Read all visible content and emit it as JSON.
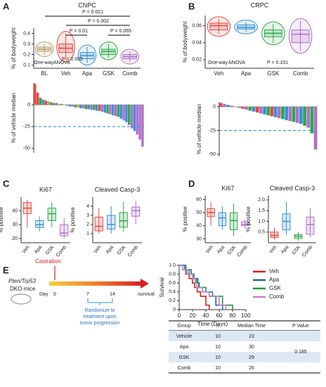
{
  "panel_labels": [
    "A",
    "B",
    "C",
    "D",
    "E"
  ],
  "chart_data": [
    {
      "type": "box",
      "title": "CNPC",
      "y_label": "% of bodyweight",
      "categories": [
        "BL",
        "Veh",
        "Apa",
        "GSK",
        "Comb"
      ],
      "colors": [
        "#b5a06a",
        "#e8463c",
        "#3a8fd6",
        "#2ea84a",
        "#b070c8"
      ],
      "min": [
        0.2,
        0.15,
        0.12,
        0.17,
        0.13
      ],
      "q1": [
        0.23,
        0.22,
        0.16,
        0.2,
        0.16
      ],
      "median": [
        0.25,
        0.26,
        0.19,
        0.23,
        0.18
      ],
      "q3": [
        0.27,
        0.3,
        0.22,
        0.25,
        0.2
      ],
      "max": [
        0.3,
        0.4,
        0.27,
        0.3,
        0.23
      ],
      "ylim": [
        0.07,
        0.45
      ],
      "yticks": [
        0.1,
        0.2,
        0.3,
        0.4
      ],
      "annotations": [
        "P = 0.021",
        "P = 0.002",
        "P = 0.01",
        "P = 0.065",
        "P = 0.002",
        "One-way",
        "ANOVA"
      ]
    },
    {
      "type": "waterfall",
      "y_label": "% of vehicle median",
      "values": [
        24,
        14,
        8,
        6,
        5,
        4,
        3,
        2,
        2,
        1,
        1,
        0,
        -1,
        -2,
        -2,
        -3,
        -3,
        -4,
        -4,
        -5,
        -5,
        -6,
        -6,
        -7,
        -7,
        -8,
        -9,
        -10,
        -11,
        -12,
        -13,
        -14,
        -16,
        -18,
        -20,
        -23,
        -27,
        -30,
        -34,
        -40,
        -48
      ],
      "colors": [
        "#e8463c",
        "#e8463c",
        "#2ea84a",
        "#3a8fd6",
        "#e8463c",
        "#b5a06a",
        "#2ea84a",
        "#e8463c",
        "#3a8fd6",
        "#b5a06a",
        "#e8463c",
        "#b070c8",
        "#2ea84a",
        "#3a8fd6",
        "#b070c8",
        "#2ea84a",
        "#b5a06a",
        "#3a8fd6",
        "#b070c8",
        "#2ea84a",
        "#3a8fd6",
        "#b070c8",
        "#2ea84a",
        "#3a8fd6",
        "#e8463c",
        "#b070c8",
        "#3a8fd6",
        "#2ea84a",
        "#b070c8",
        "#3a8fd6",
        "#b070c8",
        "#2ea84a",
        "#3a8fd6",
        "#b070c8",
        "#3a8fd6",
        "#2ea84a",
        "#b070c8",
        "#3a8fd6",
        "#b070c8",
        "#b070c8",
        "#b070c8"
      ],
      "reference": -25,
      "ylim": [
        -55,
        25
      ],
      "yticks": [
        0,
        -25,
        -50
      ]
    },
    {
      "type": "box",
      "title": "CRPC",
      "y_label": "% of bodyweight",
      "categories": [
        "Veh",
        "Apa",
        "GSK",
        "Comb"
      ],
      "colors": [
        "#e8463c",
        "#3a8fd6",
        "#2ea84a",
        "#b070c8"
      ],
      "min": [
        0.05,
        0.053,
        0.04,
        0.03
      ],
      "q1": [
        0.055,
        0.056,
        0.047,
        0.04
      ],
      "median": [
        0.06,
        0.058,
        0.051,
        0.05
      ],
      "q3": [
        0.063,
        0.061,
        0.055,
        0.055
      ],
      "max": [
        0.068,
        0.064,
        0.062,
        0.066
      ],
      "ylim": [
        0.01,
        0.072
      ],
      "yticks": [
        0.02,
        0.04,
        0.06
      ],
      "annotations": [
        "One-way",
        "ANOVA",
        "P = 0.101"
      ]
    },
    {
      "type": "waterfall",
      "y_label": "% of vehicle median",
      "values": [
        4,
        3,
        2,
        1,
        0,
        -1,
        -2,
        -3,
        -4,
        -5,
        -6,
        -7,
        -8,
        -9,
        -10,
        -11,
        -12,
        -13,
        -14,
        -15,
        -16,
        -17,
        -18,
        -20,
        -22,
        -28,
        -45
      ],
      "colors": [
        "#e8463c",
        "#b070c8",
        "#3a8fd6",
        "#e8463c",
        "#2ea84a",
        "#3a8fd6",
        "#e8463c",
        "#b070c8",
        "#2ea84a",
        "#3a8fd6",
        "#e8463c",
        "#b070c8",
        "#3a8fd6",
        "#2ea84a",
        "#e8463c",
        "#3a8fd6",
        "#b070c8",
        "#2ea84a",
        "#3a8fd6",
        "#b070c8",
        "#2ea84a",
        "#b070c8",
        "#3a8fd6",
        "#2ea84a",
        "#b070c8",
        "#2ea84a",
        "#b070c8"
      ],
      "reference": -25,
      "ylim": [
        -52,
        5
      ],
      "yticks": [
        0,
        -25,
        -50
      ]
    },
    {
      "type": "box",
      "title": "Ki67",
      "y_label": "% positive",
      "categories": [
        "Veh",
        "Apa",
        "GSK",
        "Comb"
      ],
      "colors": [
        "#e8463c",
        "#3a8fd6",
        "#2ea84a",
        "#b070c8"
      ],
      "min": [
        28,
        25,
        28,
        20
      ],
      "q1": [
        38,
        28,
        33,
        22
      ],
      "median": [
        42,
        30,
        38,
        24
      ],
      "q3": [
        46,
        33,
        42,
        30
      ],
      "max": [
        48,
        36,
        46,
        35
      ],
      "ylim": [
        17,
        50
      ],
      "yticks": [
        20,
        30,
        40
      ]
    },
    {
      "type": "box",
      "title": "Cleaved Casp-3",
      "y_label": "% positive",
      "categories": [
        "Veh",
        "Apa",
        "GSK",
        "Comb"
      ],
      "colors": [
        "#e8463c",
        "#3a8fd6",
        "#2ea84a",
        "#b070c8"
      ],
      "min": [
        1,
        1,
        1.2,
        2
      ],
      "q1": [
        1.3,
        1.5,
        1.7,
        2.9
      ],
      "median": [
        1.8,
        2,
        2.4,
        3.5
      ],
      "q3": [
        2.8,
        3,
        3.3,
        3.9
      ],
      "max": [
        3.8,
        4,
        4.5,
        4.6
      ],
      "ylim": [
        0,
        5
      ],
      "yticks": [
        1,
        2,
        3,
        4
      ]
    },
    {
      "type": "box",
      "title": "Ki67",
      "y_label": "% positive",
      "categories": [
        "Veh",
        "Apa",
        "GSK",
        "Comb"
      ],
      "colors": [
        "#e8463c",
        "#3a8fd6",
        "#2ea84a",
        "#b070c8"
      ],
      "min": [
        40,
        37,
        32,
        38
      ],
      "q1": [
        47,
        40,
        37,
        40
      ],
      "median": [
        50,
        46,
        44,
        41
      ],
      "q3": [
        53,
        50,
        50,
        43
      ],
      "max": [
        58,
        55,
        57,
        45
      ],
      "ylim": [
        27,
        63
      ],
      "yticks": [
        30,
        40,
        50,
        60
      ]
    },
    {
      "type": "box",
      "title": "Cleaved Casp-3",
      "y_label": "% positive",
      "categories": [
        "Veh",
        "Apa",
        "GSK",
        "Comb"
      ],
      "colors": [
        "#e8463c",
        "#3a8fd6",
        "#2ea84a",
        "#b070c8"
      ],
      "min": [
        0.15,
        0.35,
        0.1,
        0.25
      ],
      "q1": [
        0.25,
        0.6,
        0.2,
        0.4
      ],
      "median": [
        0.35,
        1,
        0.3,
        0.85
      ],
      "q3": [
        0.5,
        1.35,
        0.38,
        1.2
      ],
      "max": [
        0.7,
        1.9,
        0.5,
        1.6
      ],
      "ylim": [
        0,
        2.2
      ],
      "yticks": [
        0.5,
        {
          "value": 1,
          "label": "1.0"
        },
        1.5,
        {
          "value": 2,
          "label": "2.0"
        }
      ]
    },
    {
      "type": "line",
      "x_label": "Time (Days)",
      "y_label": "Survival",
      "series": [
        {
          "name": "Veh",
          "color": "#d62020",
          "x": [
            0,
            5,
            10,
            15,
            20,
            23,
            27,
            32,
            40,
            45
          ],
          "values": [
            1,
            0.9,
            0.8,
            0.7,
            0.6,
            0.5,
            0.4,
            0.3,
            0.1,
            0
          ]
        },
        {
          "name": "Apa",
          "color": "#2060b0",
          "x": [
            0,
            10,
            18,
            22,
            28,
            30,
            35,
            45,
            55,
            65
          ],
          "values": [
            1,
            0.9,
            0.8,
            0.7,
            0.6,
            0.5,
            0.4,
            0.3,
            0.1,
            0
          ]
        },
        {
          "name": "GSK",
          "color": "#1a9a40",
          "x": [
            0,
            8,
            15,
            22,
            26,
            29,
            40,
            50,
            65,
            80
          ],
          "values": [
            1,
            0.9,
            0.8,
            0.7,
            0.6,
            0.5,
            0.4,
            0.3,
            0.1,
            0
          ]
        },
        {
          "name": "Comb",
          "color": "#c080d0",
          "x": [
            0,
            5,
            12,
            20,
            24,
            26,
            35,
            45,
            60,
            70
          ],
          "values": [
            1,
            0.9,
            0.8,
            0.7,
            0.6,
            0.5,
            0.4,
            0.3,
            0.1,
            0
          ]
        }
      ],
      "xlim": [
        0,
        100
      ],
      "xticks": [
        0,
        20,
        40,
        60,
        80,
        100
      ],
      "ylim": [
        0,
        1
      ],
      "yticks": [
        0,
        0.2,
        0.4,
        0.6,
        0.8,
        {
          "value": 1,
          "label": "1.0"
        }
      ]
    }
  ],
  "schematic": {
    "event": "Castration",
    "model": "Pten/Trp53",
    "mice": "DKO mice",
    "day": "Day",
    "days": [
      "0",
      "7",
      "14"
    ],
    "end": "survival",
    "note": [
      "Randomize to",
      "treatment upon",
      "tumor progression"
    ]
  },
  "table": {
    "header": [
      "Group",
      "n",
      "Median Time",
      "P Value"
    ],
    "rows": [
      [
        "Vehicle",
        "10",
        "23"
      ],
      [
        "Apa",
        "10",
        "30"
      ],
      [
        "GSK",
        "10",
        "29"
      ],
      [
        "Comb",
        "10",
        "26"
      ]
    ],
    "p_value": "0.185"
  }
}
